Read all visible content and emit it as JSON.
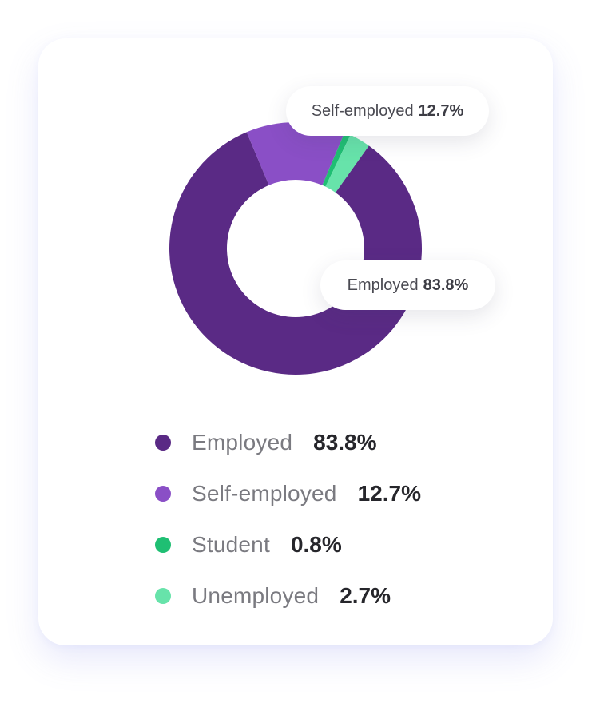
{
  "chart_data": {
    "type": "pie",
    "style": "donut",
    "categories": [
      "Employed",
      "Self-employed",
      "Student",
      "Unemployed"
    ],
    "values": [
      83.8,
      12.7,
      0.8,
      2.7
    ],
    "value_labels": [
      "83.8%",
      "12.7%",
      "0.8%",
      "2.7%"
    ],
    "colors": [
      "#5a2a85",
      "#8a4fc6",
      "#1fbf73",
      "#67e3aa"
    ],
    "legend_placement": "bottom",
    "callouts": [
      {
        "label": "Self-employed",
        "value": "12.7%"
      },
      {
        "label": "Employed",
        "value": "83.8%"
      }
    ]
  }
}
